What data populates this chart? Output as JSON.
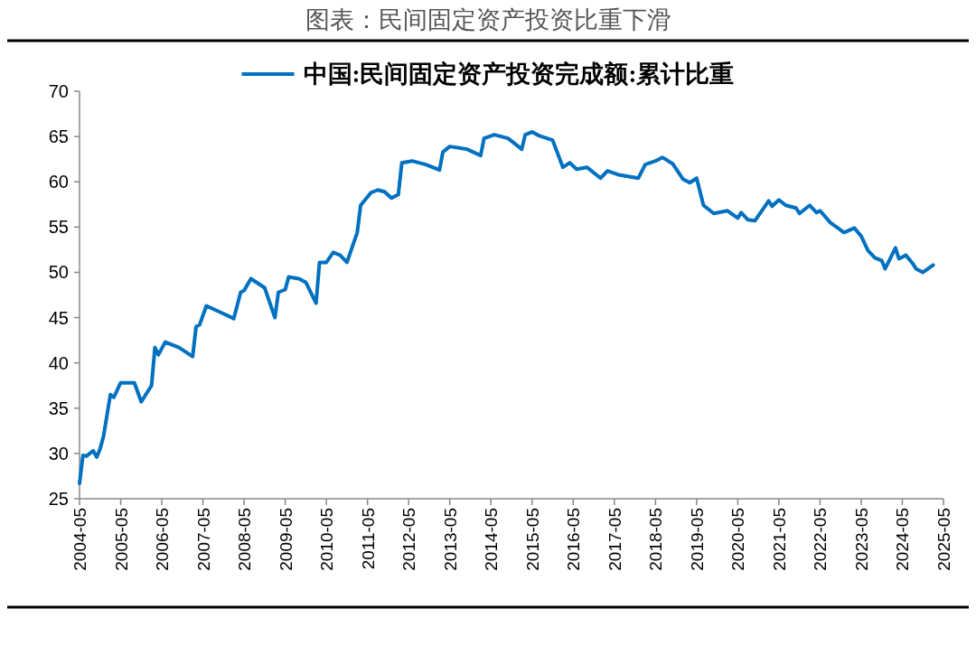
{
  "chart_data": {
    "type": "line",
    "title": "图表：民间固定资产投资比重下滑",
    "legend": "top",
    "grid": false,
    "xlim": [
      "2004-05",
      "2025-05"
    ],
    "xticks": [
      "2004-05",
      "2005-05",
      "2006-05",
      "2007-05",
      "2008-05",
      "2009-05",
      "2010-05",
      "2011-05",
      "2012-05",
      "2013-05",
      "2014-05",
      "2015-05",
      "2016-05",
      "2017-05",
      "2018-05",
      "2019-05",
      "2020-05",
      "2021-05",
      "2022-05",
      "2023-05",
      "2024-05",
      "2025-05"
    ],
    "ylim": [
      25,
      70
    ],
    "yticks": [
      25,
      30,
      35,
      40,
      45,
      50,
      55,
      60,
      65,
      70
    ],
    "x": [
      "2004-05",
      "2004-06",
      "2004-07",
      "2004-09",
      "2004-10",
      "2004-11",
      "2004-12",
      "2005-02",
      "2005-03",
      "2005-05",
      "2005-09",
      "2005-11",
      "2006-02",
      "2006-03",
      "2006-04",
      "2006-06",
      "2006-10",
      "2007-02",
      "2007-03",
      "2007-04",
      "2007-06",
      "2007-10",
      "2008-02",
      "2008-04",
      "2008-05",
      "2008-07",
      "2008-11",
      "2009-02",
      "2009-03",
      "2009-05",
      "2009-06",
      "2009-09",
      "2009-11",
      "2010-02",
      "2010-03",
      "2010-05",
      "2010-07",
      "2010-09",
      "2010-11",
      "2011-02",
      "2011-03",
      "2011-06",
      "2011-08",
      "2011-10",
      "2011-12",
      "2012-02",
      "2012-03",
      "2012-06",
      "2012-10",
      "2013-02",
      "2013-03",
      "2013-05",
      "2013-10",
      "2014-02",
      "2014-03",
      "2014-06",
      "2014-10",
      "2015-02",
      "2015-03",
      "2015-05",
      "2015-07",
      "2015-11",
      "2016-02",
      "2016-04",
      "2016-06",
      "2016-09",
      "2017-01",
      "2017-03",
      "2017-06",
      "2017-09",
      "2017-12",
      "2018-02",
      "2018-05",
      "2018-07",
      "2018-10",
      "2019-01",
      "2019-03",
      "2019-05",
      "2019-07",
      "2019-10",
      "2020-02",
      "2020-05",
      "2020-06",
      "2020-08",
      "2020-10",
      "2021-02",
      "2021-03",
      "2021-05",
      "2021-07",
      "2021-10",
      "2021-11",
      "2022-02",
      "2022-04",
      "2022-05",
      "2022-08",
      "2022-12",
      "2023-03",
      "2023-05",
      "2023-07",
      "2023-09",
      "2023-11",
      "2023-12",
      "2024-03",
      "2024-04",
      "2024-06",
      "2024-08",
      "2024-09",
      "2024-11",
      "2025-02"
    ],
    "series": [
      {
        "name": "中国:民间固定资产投资完成额:累计比重",
        "color": "#0070c0",
        "values": [
          26.7,
          29.8,
          29.7,
          30.3,
          29.6,
          30.5,
          31.9,
          36.5,
          36.2,
          37.8,
          37.8,
          35.7,
          37.5,
          41.7,
          40.9,
          42.3,
          41.7,
          40.7,
          44.0,
          44.2,
          46.3,
          45.6,
          44.9,
          47.8,
          48.0,
          49.3,
          48.3,
          45.0,
          47.8,
          48.1,
          49.5,
          49.3,
          48.9,
          46.6,
          51.1,
          51.1,
          52.2,
          51.9,
          51.1,
          54.4,
          57.4,
          58.8,
          59.1,
          58.9,
          58.2,
          58.6,
          62.1,
          62.3,
          61.9,
          61.3,
          63.3,
          63.9,
          63.6,
          62.9,
          64.8,
          65.2,
          64.8,
          63.6,
          65.2,
          65.5,
          65.1,
          64.6,
          61.6,
          62.1,
          61.4,
          61.6,
          60.4,
          61.2,
          60.8,
          60.6,
          60.4,
          61.9,
          62.3,
          62.7,
          62.0,
          60.3,
          59.9,
          60.4,
          57.4,
          56.5,
          56.8,
          56.0,
          56.6,
          55.8,
          55.7,
          57.9,
          57.3,
          58.0,
          57.4,
          57.1,
          56.5,
          57.4,
          56.6,
          56.8,
          55.5,
          54.4,
          54.9,
          54.0,
          52.4,
          51.6,
          51.3,
          50.4,
          52.7,
          51.5,
          51.9,
          51.0,
          50.4,
          50.0,
          50.8
        ]
      }
    ]
  }
}
